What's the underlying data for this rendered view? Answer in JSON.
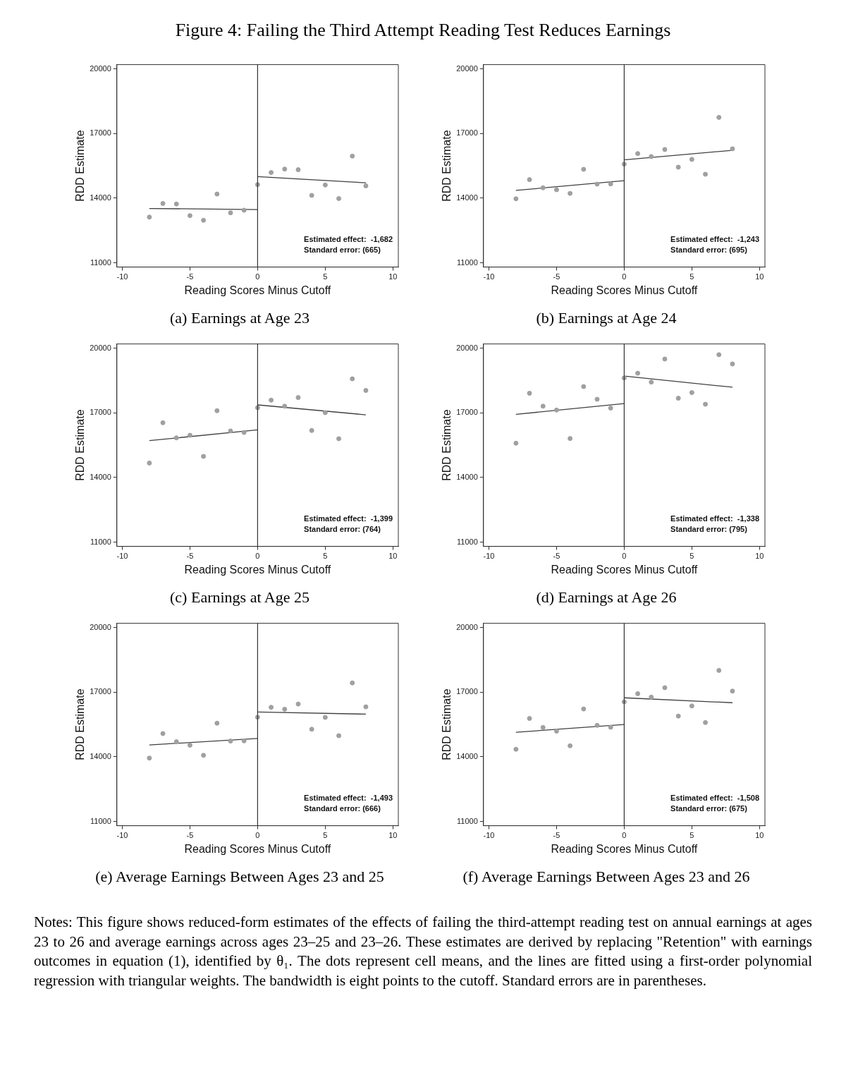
{
  "chart_data": [
    {
      "type": "other",
      "title": "Figure 4: Failing the Third Attempt Reading Test Reduces Earnings"
    },
    {
      "type": "scatter",
      "title": "(a) Earnings at Age 23",
      "xlabel": "Reading Scores Minus Cutoff",
      "ylabel": "RDD Estimate",
      "xlim": [
        -10.4,
        10.4
      ],
      "xticks": [
        -10,
        -5,
        0,
        5,
        10
      ],
      "ylim": [
        10800,
        20200
      ],
      "yticks": [
        11000,
        14000,
        17000,
        20000
      ],
      "ref_lines": [
        {
          "axis": "x",
          "value": 0,
          "color": "#333333"
        }
      ],
      "annotations": [
        "Estimated effect:  -1,682",
        "Standard error: (665)"
      ],
      "series": [
        {
          "type": "scatter",
          "marker": "circle",
          "color": "#a0a0a0",
          "x": [
            -8,
            -7,
            -6,
            -5,
            -4,
            -3,
            -2,
            -1,
            0,
            1,
            2,
            3,
            4,
            5,
            6,
            7,
            8
          ],
          "values": [
            13120,
            13750,
            13730,
            13190,
            12970,
            14190,
            13320,
            13440,
            14630,
            15190,
            15350,
            15320,
            14130,
            14610,
            13980,
            15950,
            14570
          ]
        },
        {
          "type": "line",
          "marker": "none",
          "color": "#404040",
          "x": [
            -8,
            0
          ],
          "values": [
            13520,
            13470
          ]
        },
        {
          "type": "line",
          "marker": "none",
          "color": "#404040",
          "x": [
            0,
            8
          ],
          "values": [
            15000,
            14710
          ]
        }
      ]
    },
    {
      "type": "scatter",
      "title": "(b) Earnings at Age 24",
      "xlabel": "Reading Scores Minus Cutoff",
      "ylabel": "RDD Estimate",
      "xlim": [
        -10.4,
        10.4
      ],
      "xticks": [
        -10,
        -5,
        0,
        5,
        10
      ],
      "ylim": [
        10800,
        20200
      ],
      "yticks": [
        11000,
        14000,
        17000,
        20000
      ],
      "ref_lines": [
        {
          "axis": "x",
          "value": 0,
          "color": "#333333"
        }
      ],
      "annotations": [
        "Estimated effect:  -1,243",
        "Standard error: (695)"
      ],
      "series": [
        {
          "type": "scatter",
          "marker": "circle",
          "color": "#a0a0a0",
          "x": [
            -8,
            -7,
            -6,
            -5,
            -4,
            -3,
            -2,
            -1,
            0,
            1,
            2,
            3,
            4,
            5,
            6,
            7,
            8
          ],
          "values": [
            13970,
            14860,
            14480,
            14390,
            14220,
            15340,
            14650,
            14660,
            15580,
            16070,
            15930,
            16260,
            15440,
            15800,
            15110,
            17750,
            16290
          ]
        },
        {
          "type": "line",
          "marker": "none",
          "color": "#404040",
          "x": [
            -8,
            0
          ],
          "values": [
            14360,
            14810
          ]
        },
        {
          "type": "line",
          "marker": "none",
          "color": "#404040",
          "x": [
            0,
            8
          ],
          "values": [
            15780,
            16220
          ]
        }
      ]
    },
    {
      "type": "scatter",
      "title": "(c) Earnings at Age 25",
      "xlabel": "Reading Scores Minus Cutoff",
      "ylabel": "RDD Estimate",
      "xlim": [
        -10.4,
        10.4
      ],
      "xticks": [
        -10,
        -5,
        0,
        5,
        10
      ],
      "ylim": [
        10800,
        20200
      ],
      "yticks": [
        11000,
        14000,
        17000,
        20000
      ],
      "ref_lines": [
        {
          "axis": "x",
          "value": 0,
          "color": "#333333"
        }
      ],
      "annotations": [
        "Estimated effect:  -1,399",
        "Standard error: (764)"
      ],
      "series": [
        {
          "type": "scatter",
          "marker": "circle",
          "color": "#a0a0a0",
          "x": [
            -8,
            -7,
            -6,
            -5,
            -4,
            -3,
            -2,
            -1,
            0,
            1,
            2,
            3,
            4,
            5,
            6,
            7,
            8
          ],
          "values": [
            14670,
            16540,
            15840,
            15960,
            14980,
            17100,
            16160,
            16090,
            17240,
            17590,
            17310,
            17710,
            16180,
            17010,
            15800,
            18580,
            18040
          ]
        },
        {
          "type": "line",
          "marker": "none",
          "color": "#404040",
          "x": [
            -8,
            0
          ],
          "values": [
            15710,
            16210
          ]
        },
        {
          "type": "line",
          "marker": "none",
          "color": "#404040",
          "x": [
            0,
            8
          ],
          "values": [
            17370,
            16910
          ]
        }
      ]
    },
    {
      "type": "scatter",
      "title": "(d) Earnings at Age 26",
      "xlabel": "Reading Scores Minus Cutoff",
      "ylabel": "RDD Estimate",
      "xlim": [
        -10.4,
        10.4
      ],
      "xticks": [
        -10,
        -5,
        0,
        5,
        10
      ],
      "ylim": [
        10800,
        20200
      ],
      "yticks": [
        11000,
        14000,
        17000,
        20000
      ],
      "ref_lines": [
        {
          "axis": "x",
          "value": 0,
          "color": "#333333"
        }
      ],
      "annotations": [
        "Estimated effect:  -1,338",
        "Standard error: (795)"
      ],
      "series": [
        {
          "type": "scatter",
          "marker": "circle",
          "color": "#a0a0a0",
          "x": [
            -8,
            -7,
            -6,
            -5,
            -4,
            -3,
            -2,
            -1,
            0,
            1,
            2,
            3,
            4,
            5,
            6,
            7,
            8
          ],
          "values": [
            15590,
            17910,
            17310,
            17130,
            15810,
            18220,
            17630,
            17220,
            18620,
            18840,
            18430,
            19500,
            17680,
            17940,
            17400,
            19700,
            19270
          ]
        },
        {
          "type": "line",
          "marker": "none",
          "color": "#404040",
          "x": [
            -8,
            0
          ],
          "values": [
            16930,
            17430
          ]
        },
        {
          "type": "line",
          "marker": "none",
          "color": "#404040",
          "x": [
            0,
            8
          ],
          "values": [
            18710,
            18190
          ]
        }
      ]
    },
    {
      "type": "scatter",
      "title": "(e) Average Earnings Between Ages 23 and 25",
      "xlabel": "Reading Scores Minus Cutoff",
      "ylabel": "RDD Estimate",
      "xlim": [
        -10.4,
        10.4
      ],
      "xticks": [
        -10,
        -5,
        0,
        5,
        10
      ],
      "ylim": [
        10800,
        20200
      ],
      "yticks": [
        11000,
        14000,
        17000,
        20000
      ],
      "ref_lines": [
        {
          "axis": "x",
          "value": 0,
          "color": "#333333"
        }
      ],
      "annotations": [
        "Estimated effect:  -1,493",
        "Standard error: (666)"
      ],
      "series": [
        {
          "type": "scatter",
          "marker": "circle",
          "color": "#a0a0a0",
          "x": [
            -8,
            -7,
            -6,
            -5,
            -4,
            -3,
            -2,
            -1,
            0,
            1,
            2,
            3,
            4,
            5,
            6,
            7,
            8
          ],
          "values": [
            13940,
            15080,
            14700,
            14540,
            14070,
            15560,
            14730,
            14740,
            15840,
            16300,
            16210,
            16450,
            15280,
            15830,
            14980,
            17430,
            16320
          ]
        },
        {
          "type": "line",
          "marker": "none",
          "color": "#404040",
          "x": [
            -8,
            0
          ],
          "values": [
            14550,
            14850
          ]
        },
        {
          "type": "line",
          "marker": "none",
          "color": "#404040",
          "x": [
            0,
            8
          ],
          "values": [
            16080,
            15980
          ]
        }
      ]
    },
    {
      "type": "scatter",
      "title": "(f) Average Earnings Between Ages 23 and 26",
      "xlabel": "Reading Scores Minus Cutoff",
      "ylabel": "RDD Estimate",
      "xlim": [
        -10.4,
        10.4
      ],
      "xticks": [
        -10,
        -5,
        0,
        5,
        10
      ],
      "ylim": [
        10800,
        20200
      ],
      "yticks": [
        11000,
        14000,
        17000,
        20000
      ],
      "ref_lines": [
        {
          "axis": "x",
          "value": 0,
          "color": "#333333"
        }
      ],
      "annotations": [
        "Estimated effect:  -1,508",
        "Standard error: (675)"
      ],
      "series": [
        {
          "type": "scatter",
          "marker": "circle",
          "color": "#a0a0a0",
          "x": [
            -8,
            -7,
            -6,
            -5,
            -4,
            -3,
            -2,
            -1,
            0,
            1,
            2,
            3,
            4,
            5,
            6,
            7,
            8
          ],
          "values": [
            14350,
            15780,
            15360,
            15190,
            14510,
            16220,
            15460,
            15370,
            16550,
            16930,
            16770,
            17210,
            15890,
            16360,
            15590,
            18010,
            17050
          ]
        },
        {
          "type": "line",
          "marker": "none",
          "color": "#404040",
          "x": [
            -8,
            0
          ],
          "values": [
            15140,
            15500
          ]
        },
        {
          "type": "line",
          "marker": "none",
          "color": "#404040",
          "x": [
            0,
            8
          ],
          "values": [
            16740,
            16510
          ]
        }
      ]
    },
    {
      "type": "other",
      "annotations": [
        "Notes: This figure shows reduced-form estimates of the effects of failing the third-attempt reading test on annual earnings at ages 23 to 26 and average earnings across ages 23–25 and 23–26. These estimates are derived by replacing \"Retention\" with earnings outcomes in equation (1), identified by θ₁. The dots represent cell means, and the lines are fitted using a first-order polynomial regression with triangular weights. The bandwidth is eight points to the cutoff. Standard errors are in parentheses."
      ]
    }
  ]
}
